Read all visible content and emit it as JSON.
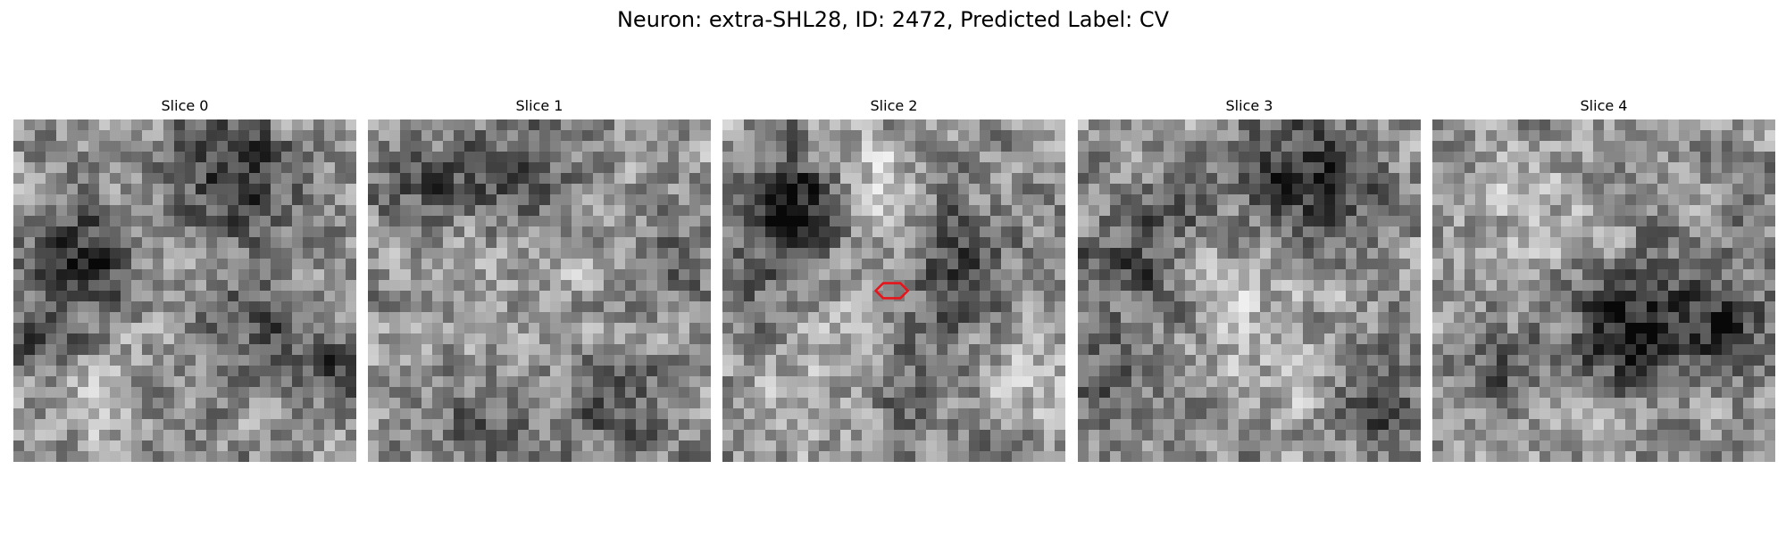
{
  "figure": {
    "title": "Neuron: extra-SHL28, ID: 2472, Predicted Label: CV"
  },
  "slices": [
    {
      "title": "Slice 0"
    },
    {
      "title": "Slice 1"
    },
    {
      "title": "Slice 2"
    },
    {
      "title": "Slice 3"
    },
    {
      "title": "Slice 4"
    }
  ],
  "colors": {
    "background": "#ffffff",
    "marker": "#e8141c"
  }
}
